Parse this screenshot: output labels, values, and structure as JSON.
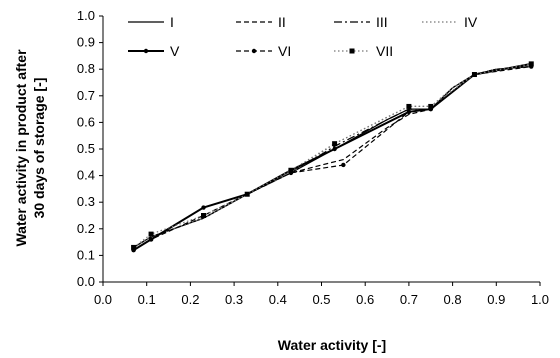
{
  "chart_data": {
    "type": "line",
    "title": "",
    "xlabel": "Water activity [-]",
    "ylabel_lines": [
      "Water activity in product  after",
      "30 days of storage [-]"
    ],
    "xlim": [
      0.0,
      1.0
    ],
    "ylim": [
      0.0,
      1.0
    ],
    "xticks": [
      "0.0",
      "0.1",
      "0.2",
      "0.3",
      "0.4",
      "0.5",
      "0.6",
      "0.7",
      "0.8",
      "0.9",
      "1.0"
    ],
    "yticks": [
      "0.0",
      "0.1",
      "0.2",
      "0.3",
      "0.4",
      "0.5",
      "0.6",
      "0.7",
      "0.8",
      "0.9",
      "1.0"
    ],
    "grid": false,
    "legend_position": "top",
    "series": [
      {
        "name": "I",
        "style": "solid",
        "marker": "none",
        "x": [
          0.07,
          0.11,
          0.23,
          0.33,
          0.43,
          0.53,
          0.65,
          0.7,
          0.75,
          0.8,
          0.85,
          0.9,
          0.98
        ],
        "y": [
          0.13,
          0.17,
          0.24,
          0.33,
          0.41,
          0.5,
          0.61,
          0.65,
          0.65,
          0.73,
          0.78,
          0.8,
          0.81
        ]
      },
      {
        "name": "II",
        "style": "dashed",
        "marker": "none",
        "x": [
          0.07,
          0.11,
          0.23,
          0.33,
          0.43,
          0.5,
          0.55,
          0.6,
          0.65,
          0.7,
          0.75,
          0.8,
          0.85,
          0.9,
          0.98
        ],
        "y": [
          0.13,
          0.17,
          0.24,
          0.33,
          0.41,
          0.44,
          0.46,
          0.52,
          0.58,
          0.63,
          0.65,
          0.73,
          0.78,
          0.8,
          0.81
        ]
      },
      {
        "name": "III",
        "style": "dashdot",
        "marker": "none",
        "x": [
          0.07,
          0.11,
          0.23,
          0.33,
          0.43,
          0.53,
          0.65,
          0.7,
          0.75,
          0.8,
          0.85,
          0.9,
          0.98
        ],
        "y": [
          0.13,
          0.17,
          0.24,
          0.33,
          0.41,
          0.51,
          0.61,
          0.65,
          0.65,
          0.73,
          0.78,
          0.8,
          0.81
        ]
      },
      {
        "name": "IV",
        "style": "dotted",
        "marker": "none",
        "x": [
          0.07,
          0.11,
          0.23,
          0.33,
          0.43,
          0.53,
          0.65,
          0.7,
          0.75,
          0.8,
          0.85,
          0.9,
          0.98
        ],
        "y": [
          0.13,
          0.17,
          0.24,
          0.33,
          0.41,
          0.52,
          0.62,
          0.66,
          0.66,
          0.73,
          0.78,
          0.8,
          0.81
        ]
      },
      {
        "name": "V",
        "style": "solid",
        "marker": "dot",
        "x": [
          0.07,
          0.11,
          0.23,
          0.33,
          0.43,
          0.53,
          0.7,
          0.75,
          0.85,
          0.98
        ],
        "y": [
          0.12,
          0.16,
          0.28,
          0.33,
          0.42,
          0.5,
          0.64,
          0.65,
          0.78,
          0.82
        ]
      },
      {
        "name": "VI",
        "style": "dashed",
        "marker": "dot",
        "x": [
          0.07,
          0.11,
          0.23,
          0.33,
          0.43,
          0.55,
          0.7,
          0.75,
          0.85,
          0.98
        ],
        "y": [
          0.12,
          0.16,
          0.25,
          0.33,
          0.41,
          0.44,
          0.64,
          0.65,
          0.78,
          0.81
        ]
      },
      {
        "name": "VII",
        "style": "dotted",
        "marker": "square",
        "x": [
          0.07,
          0.11,
          0.23,
          0.33,
          0.43,
          0.53,
          0.7,
          0.75,
          0.85,
          0.98
        ],
        "y": [
          0.13,
          0.18,
          0.25,
          0.33,
          0.42,
          0.52,
          0.66,
          0.66,
          0.78,
          0.82
        ]
      }
    ]
  }
}
